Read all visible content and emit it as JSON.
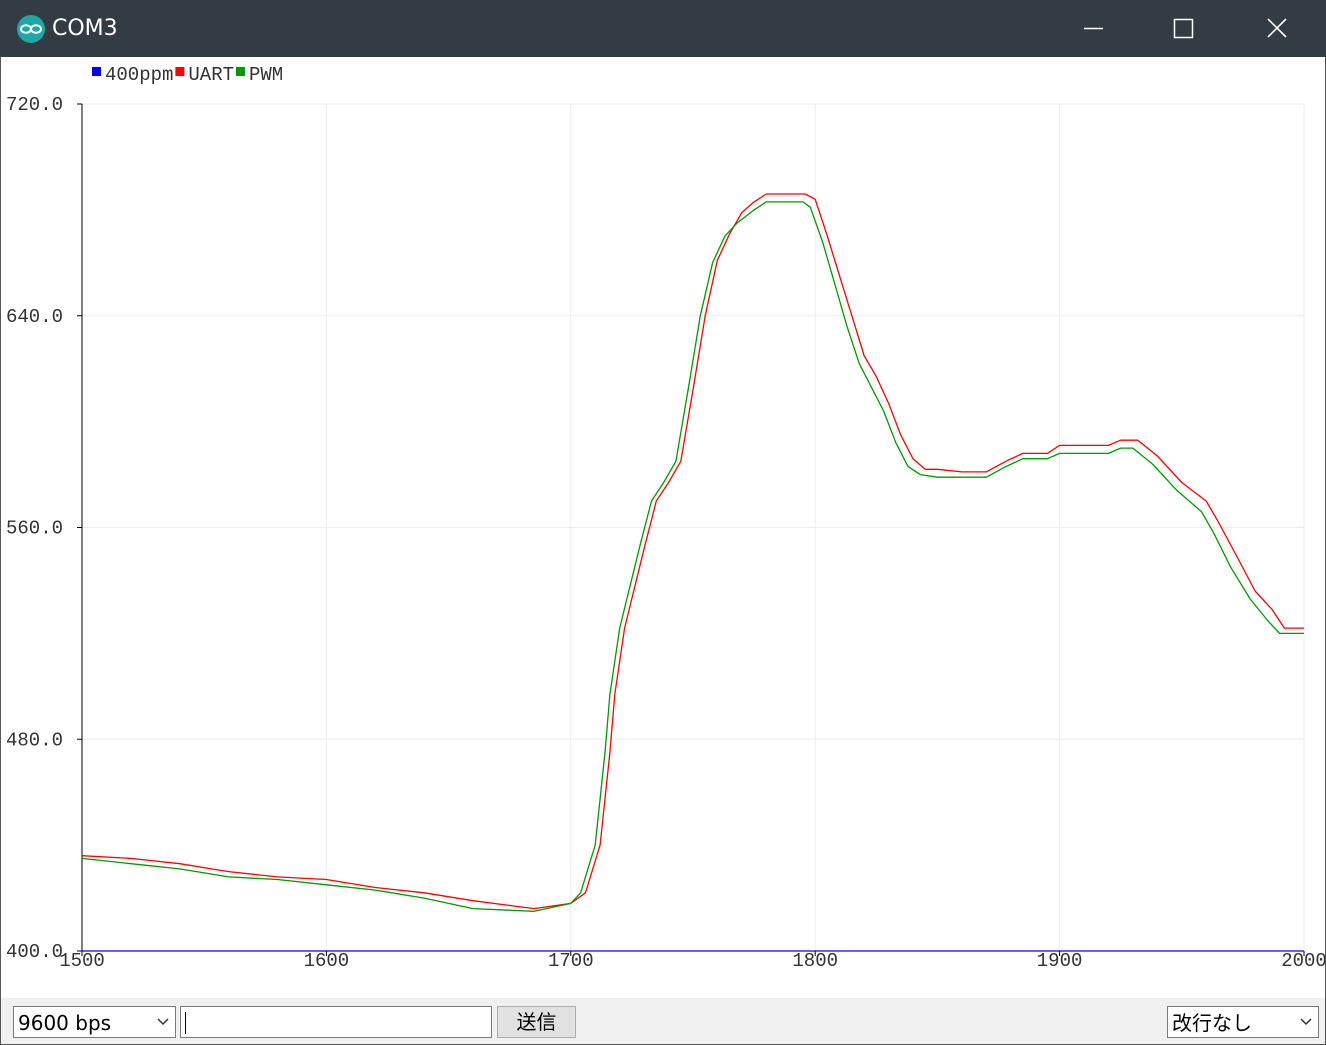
{
  "window": {
    "title": "COM3",
    "icon": "arduino-logo-icon",
    "controls": [
      "minimize-icon",
      "maximize-icon",
      "close-icon"
    ]
  },
  "legend": {
    "items": [
      {
        "label": "400ppm",
        "color": "#0000ff"
      },
      {
        "label": "UART",
        "color": "#ff0000"
      },
      {
        "label": "PWM",
        "color": "#009900"
      }
    ]
  },
  "chart_data": {
    "type": "line",
    "xlim": [
      1500,
      2000
    ],
    "ylim": [
      400,
      720
    ],
    "x_ticks": [
      "1500",
      "1600",
      "1700",
      "1800",
      "1900",
      "2000"
    ],
    "y_ticks": [
      "400.0",
      "480.0",
      "560.0",
      "640.0",
      "720.0"
    ],
    "grid": true,
    "legend_position": "top-left",
    "series": [
      {
        "name": "400ppm",
        "color": "#0000ff",
        "points": [
          [
            1500,
            400
          ],
          [
            2000,
            400
          ]
        ]
      },
      {
        "name": "UART",
        "color": "#ff0000",
        "points": [
          [
            1500,
            436
          ],
          [
            1520,
            435
          ],
          [
            1540,
            433
          ],
          [
            1560,
            430
          ],
          [
            1580,
            428
          ],
          [
            1600,
            427
          ],
          [
            1620,
            424
          ],
          [
            1640,
            422
          ],
          [
            1660,
            419
          ],
          [
            1685,
            416
          ],
          [
            1700,
            418
          ],
          [
            1706,
            422
          ],
          [
            1712,
            440
          ],
          [
            1716,
            475
          ],
          [
            1718,
            497
          ],
          [
            1722,
            522
          ],
          [
            1730,
            552
          ],
          [
            1735,
            570
          ],
          [
            1740,
            577
          ],
          [
            1745,
            585
          ],
          [
            1750,
            612
          ],
          [
            1755,
            640
          ],
          [
            1760,
            661
          ],
          [
            1765,
            671
          ],
          [
            1770,
            679
          ],
          [
            1775,
            683
          ],
          [
            1780,
            686
          ],
          [
            1785,
            686
          ],
          [
            1790,
            686
          ],
          [
            1796,
            686
          ],
          [
            1800,
            684
          ],
          [
            1805,
            670
          ],
          [
            1810,
            655
          ],
          [
            1815,
            640
          ],
          [
            1820,
            625
          ],
          [
            1825,
            617
          ],
          [
            1830,
            607
          ],
          [
            1835,
            595
          ],
          [
            1840,
            586
          ],
          [
            1845,
            582
          ],
          [
            1850,
            582
          ],
          [
            1860,
            581
          ],
          [
            1870,
            581
          ],
          [
            1878,
            585
          ],
          [
            1885,
            588
          ],
          [
            1890,
            588
          ],
          [
            1895,
            588
          ],
          [
            1900,
            591
          ],
          [
            1910,
            591
          ],
          [
            1920,
            591
          ],
          [
            1925,
            593
          ],
          [
            1932,
            593
          ],
          [
            1940,
            587
          ],
          [
            1950,
            577
          ],
          [
            1960,
            570
          ],
          [
            1965,
            562
          ],
          [
            1972,
            550
          ],
          [
            1980,
            536
          ],
          [
            1987,
            529
          ],
          [
            1992,
            522
          ],
          [
            2000,
            522
          ]
        ]
      },
      {
        "name": "PWM",
        "color": "#009900",
        "points": [
          [
            1500,
            435
          ],
          [
            1520,
            433
          ],
          [
            1540,
            431
          ],
          [
            1560,
            428
          ],
          [
            1580,
            427
          ],
          [
            1600,
            425
          ],
          [
            1620,
            423
          ],
          [
            1640,
            420
          ],
          [
            1660,
            416
          ],
          [
            1685,
            415
          ],
          [
            1700,
            418
          ],
          [
            1704,
            422
          ],
          [
            1710,
            440
          ],
          [
            1714,
            475
          ],
          [
            1716,
            497
          ],
          [
            1720,
            522
          ],
          [
            1728,
            552
          ],
          [
            1733,
            570
          ],
          [
            1738,
            577
          ],
          [
            1743,
            585
          ],
          [
            1748,
            612
          ],
          [
            1753,
            640
          ],
          [
            1758,
            660
          ],
          [
            1763,
            670
          ],
          [
            1768,
            675
          ],
          [
            1775,
            680
          ],
          [
            1780,
            683
          ],
          [
            1785,
            683
          ],
          [
            1790,
            683
          ],
          [
            1795,
            683
          ],
          [
            1798,
            681
          ],
          [
            1803,
            668
          ],
          [
            1808,
            652
          ],
          [
            1813,
            636
          ],
          [
            1818,
            622
          ],
          [
            1823,
            613
          ],
          [
            1828,
            604
          ],
          [
            1833,
            592
          ],
          [
            1838,
            583
          ],
          [
            1843,
            580
          ],
          [
            1850,
            579
          ],
          [
            1860,
            579
          ],
          [
            1870,
            579
          ],
          [
            1878,
            583
          ],
          [
            1885,
            586
          ],
          [
            1890,
            586
          ],
          [
            1895,
            586
          ],
          [
            1900,
            588
          ],
          [
            1910,
            588
          ],
          [
            1920,
            588
          ],
          [
            1925,
            590
          ],
          [
            1930,
            590
          ],
          [
            1938,
            584
          ],
          [
            1948,
            574
          ],
          [
            1958,
            566
          ],
          [
            1963,
            558
          ],
          [
            1970,
            545
          ],
          [
            1978,
            533
          ],
          [
            1985,
            525
          ],
          [
            1990,
            520
          ],
          [
            2000,
            520
          ]
        ]
      }
    ]
  },
  "bottom_bar": {
    "baud": "9600 bps",
    "input_value": "",
    "send_label": "送信",
    "line_ending": "改行なし"
  }
}
